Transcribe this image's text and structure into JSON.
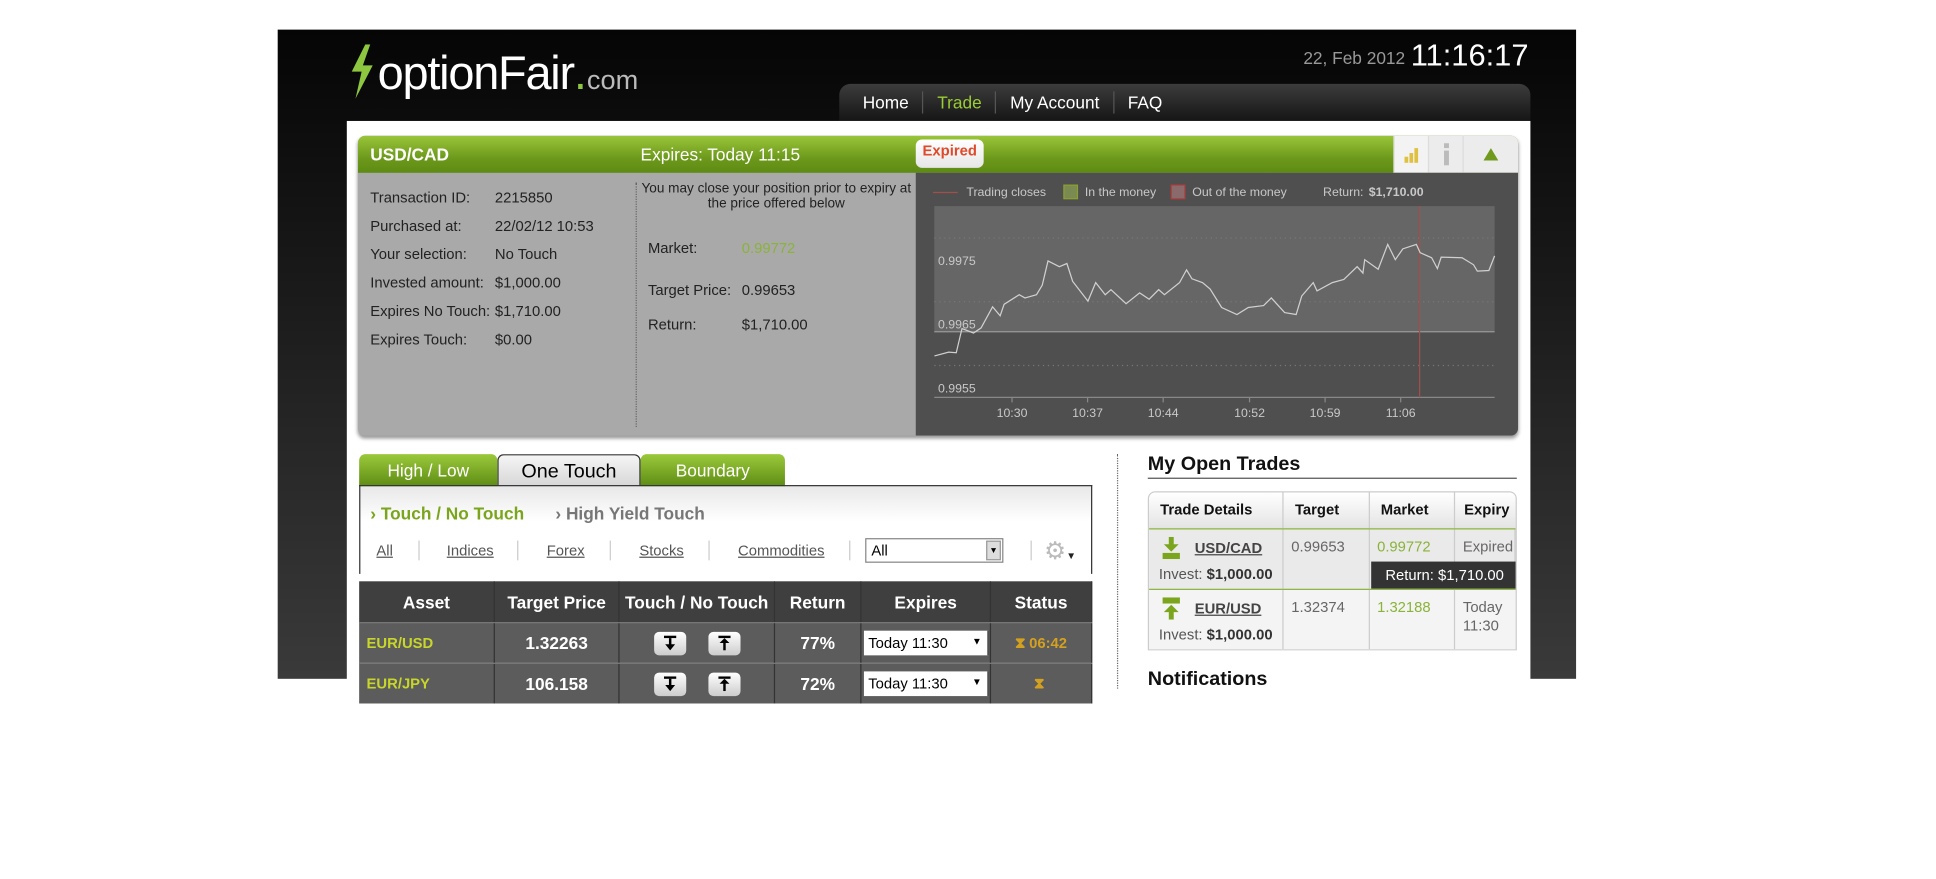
{
  "header": {
    "brand": "optionFair",
    ".dot": ".",
    "brand_tld": "com",
    "date": "22, Feb 2012",
    "time": "11:16:17",
    "nav": [
      {
        "label": "Home"
      },
      {
        "label": "Trade",
        "active": true
      },
      {
        "label": "My Account"
      },
      {
        "label": "FAQ"
      }
    ]
  },
  "colors": {
    "accent": "#8dc63f",
    "expired": "#e0482a",
    "market_green": "#8ab33a",
    "asset_yellow": "#c8d62a",
    "status_gold": "#d4a020"
  },
  "panel": {
    "asset": "USD/CAD",
    "expires_label": "Expires:",
    "expires_value": "Today 11:15",
    "status": "Expired",
    "icons": [
      "bar-chart-icon",
      "info-icon",
      "collapse-up-icon"
    ],
    "details": [
      {
        "label": "Transaction ID:",
        "value": "2215850"
      },
      {
        "label": "Purchased at:",
        "value": "22/02/12 10:53"
      },
      {
        "label": "Your selection:",
        "value": "No Touch"
      },
      {
        "label": "Invested amount:",
        "value": "$1,000.00"
      },
      {
        "label": "Expires No Touch:",
        "value": "$1,710.00"
      },
      {
        "label": "Expires Touch:",
        "value": "$0.00"
      }
    ],
    "close_note": "You may close your position prior to expiry at the price offered below",
    "close": [
      {
        "label": "Market:",
        "value": "0.99772"
      },
      {
        "label": "Target Price:",
        "value": "0.99653"
      },
      {
        "label": "Return:",
        "value": "$1,710.00"
      }
    ]
  },
  "chart_data": {
    "type": "line",
    "legend": [
      "Trading closes",
      "In the money",
      "Out of the money"
    ],
    "legend_placement": "top",
    "return_label": "Return:",
    "return_value": "$1,710.00",
    "xticks": [
      "10:30",
      "10:37",
      "10:44",
      "10:52",
      "10:59",
      "11:06"
    ],
    "yticks": [
      "0.9975",
      "0.9965",
      "0.9955"
    ],
    "xlim": [
      "10:22:48",
      "11:14:42"
    ],
    "ylim": [
      0.9955,
      0.9985
    ],
    "target": 0.99653,
    "trading_closes": "11:07:45",
    "grid": true,
    "points": [
      [
        "10:22:49",
        0.99615
      ],
      [
        "10:24:08",
        0.99621
      ],
      [
        "10:24:50",
        0.9962
      ],
      [
        "10:25:22",
        0.99658
      ],
      [
        "10:26:26",
        0.99651
      ],
      [
        "10:27:08",
        0.99659
      ],
      [
        "10:28:12",
        0.99692
      ],
      [
        "10:28:54",
        0.99678
      ],
      [
        "10:29:16",
        0.99696
      ],
      [
        "10:30:40",
        0.99711
      ],
      [
        "10:31:12",
        0.99706
      ],
      [
        "10:32:16",
        0.99711
      ],
      [
        "10:32:48",
        0.99726
      ],
      [
        "10:33:20",
        0.99764
      ],
      [
        "10:34:23",
        0.99755
      ],
      [
        "10:35:05",
        0.9976
      ],
      [
        "10:35:37",
        0.99732
      ],
      [
        "10:37:02",
        0.99701
      ],
      [
        "10:37:45",
        0.9973
      ],
      [
        "10:38:38",
        0.99711
      ],
      [
        "10:39:10",
        0.99719
      ],
      [
        "10:40:34",
        0.99697
      ],
      [
        "10:41:49",
        0.99714
      ],
      [
        "10:42:42",
        0.99704
      ],
      [
        "10:43:35",
        0.99719
      ],
      [
        "10:44:07",
        0.99711
      ],
      [
        "10:45:31",
        0.9973
      ],
      [
        "10:46:10",
        0.9975
      ],
      [
        "10:46:40",
        0.99736
      ],
      [
        "10:47:39",
        0.9973
      ],
      [
        "10:48:21",
        0.9972
      ],
      [
        "10:49:25",
        0.99691
      ],
      [
        "10:50:50",
        0.9968
      ],
      [
        "10:51:53",
        0.99691
      ],
      [
        "10:53:18",
        0.99694
      ],
      [
        "10:54:01",
        0.99706
      ],
      [
        "10:55:15",
        0.99683
      ],
      [
        "10:56:19",
        0.9968
      ],
      [
        "10:56:50",
        0.99709
      ],
      [
        "10:57:54",
        0.9973
      ],
      [
        "10:58:15",
        0.99717
      ],
      [
        "10:59:40",
        0.9973
      ],
      [
        "11:00:44",
        0.99735
      ],
      [
        "11:01:58",
        0.99755
      ],
      [
        "11:02:30",
        0.99745
      ],
      [
        "11:02:40",
        0.99766
      ],
      [
        "11:03:55",
        0.99751
      ],
      [
        "11:04:48",
        0.9979
      ],
      [
        "11:05:30",
        0.99766
      ],
      [
        "11:06:12",
        0.99783
      ],
      [
        "11:07:27",
        0.9979
      ],
      [
        "11:07:48",
        0.99777
      ],
      [
        "11:08:52",
        0.99769
      ],
      [
        "11:09:24",
        0.99752
      ],
      [
        "11:09:45",
        0.9977
      ],
      [
        "11:11:41",
        0.99769
      ],
      [
        "11:12:45",
        0.99758
      ],
      [
        "11:13:06",
        0.99748
      ],
      [
        "11:14:10",
        0.99749
      ],
      [
        "11:14:42",
        0.99772
      ]
    ]
  },
  "trade": {
    "tabs": [
      {
        "label": "High / Low"
      },
      {
        "label": "One Touch",
        "active": true
      },
      {
        "label": "Boundary"
      }
    ],
    "subtabs": [
      {
        "label": "Touch / No Touch",
        "active": true
      },
      {
        "label": "High Yield Touch"
      }
    ],
    "filters": [
      "All",
      "Indices",
      "Forex",
      "Stocks",
      "Commodities"
    ],
    "select_value": "All",
    "columns": [
      "Asset",
      "Target Price",
      "Touch / No Touch",
      "Return",
      "Expires",
      "Status"
    ],
    "rows": [
      {
        "asset": "EUR/USD",
        "target": "1.32263",
        "return": "77%",
        "expires": "Today 11:30",
        "status": "06:42"
      },
      {
        "asset": "EUR/JPY",
        "target": "106.158",
        "return": "72%",
        "expires": "Today 11:30",
        "status": ""
      }
    ]
  },
  "open_trades": {
    "title": "My Open Trades",
    "columns": [
      "Trade Details",
      "Target",
      "Market",
      "Expiry"
    ],
    "invest_label": "Invest:",
    "rows": [
      {
        "asset": "USD/CAD",
        "direction": "down",
        "invest": "$1,000.00",
        "target": "0.99653",
        "market": "0.99772",
        "expiry": "Expired",
        "return": "Return: $1,710.00"
      },
      {
        "asset": "EUR/USD",
        "direction": "up",
        "invest": "$1,000.00",
        "target": "1.32374",
        "market": "1.32188",
        "expiry": "Today 11:30"
      }
    ]
  },
  "notifications": {
    "title": "Notifications"
  }
}
